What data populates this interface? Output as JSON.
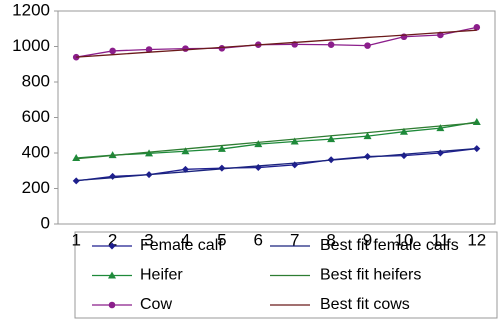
{
  "chart_data": {
    "type": "line",
    "categories": [
      "1",
      "2",
      "3",
      "4",
      "5",
      "6",
      "7",
      "8",
      "9",
      "10",
      "11",
      "12"
    ],
    "ylim": [
      0,
      1200
    ],
    "yticks": [
      0,
      200,
      400,
      600,
      800,
      1000,
      1200
    ],
    "series": [
      {
        "name": "Female calf",
        "color": "#1f1f8f",
        "marker": "diamond",
        "values": [
          243,
          268,
          278,
          308,
          315,
          318,
          333,
          362,
          380,
          385,
          400,
          425
        ]
      },
      {
        "name": "Best fit female calfs",
        "color": "#1a237e",
        "values": [
          245,
          261,
          278,
          294,
          311,
          327,
          343,
          360,
          376,
          393,
          409,
          425
        ]
      },
      {
        "name": "Heifer",
        "color": "#1e8a3a",
        "marker": "triangle",
        "values": [
          372,
          388,
          398,
          410,
          423,
          450,
          465,
          478,
          495,
          520,
          540,
          575
        ]
      },
      {
        "name": "Best fit heifers",
        "color": "#2e7d32",
        "values": [
          368,
          386,
          405,
          423,
          442,
          460,
          478,
          497,
          515,
          534,
          552,
          570
        ]
      },
      {
        "name": "Cow",
        "color": "#8b1e8b",
        "marker": "circle",
        "values": [
          940,
          975,
          983,
          988,
          990,
          1010,
          1012,
          1010,
          1005,
          1055,
          1065,
          1108
        ]
      },
      {
        "name": "Best fit cows",
        "color": "#6b1a1a",
        "values": [
          940,
          954,
          968,
          981,
          995,
          1009,
          1023,
          1037,
          1051,
          1064,
          1078,
          1092
        ]
      }
    ]
  }
}
